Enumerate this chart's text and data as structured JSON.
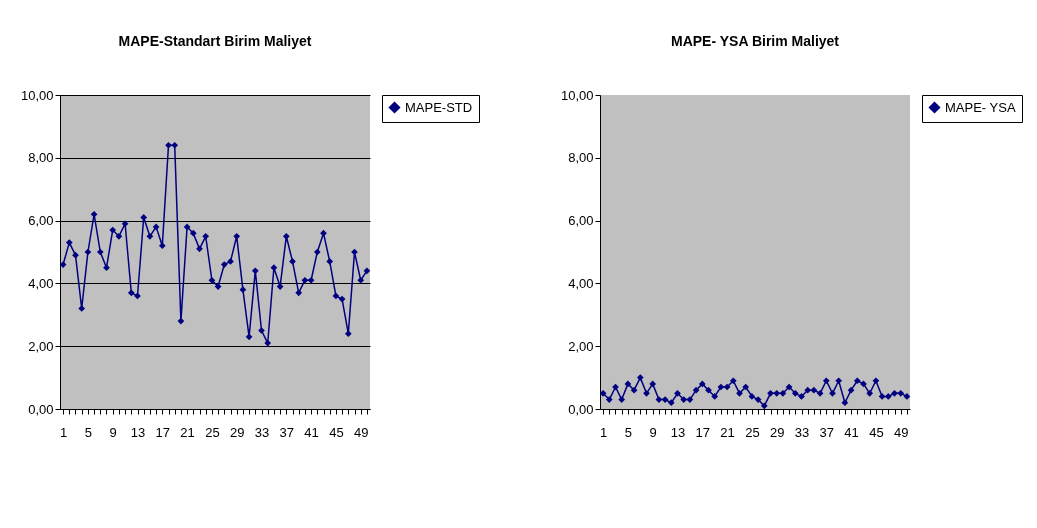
{
  "chart_data": [
    {
      "type": "line",
      "title": "MAPE-Standart Birim Maliyet",
      "categories": [
        "1",
        null,
        null,
        null,
        "5",
        null,
        null,
        null,
        "9",
        null,
        null,
        null,
        "13",
        null,
        null,
        null,
        "17",
        null,
        null,
        null,
        "21",
        null,
        null,
        null,
        "25",
        null,
        null,
        null,
        "29",
        null,
        null,
        null,
        "33",
        null,
        null,
        null,
        "37",
        null,
        null,
        null,
        "41",
        null,
        null,
        null,
        "45",
        null,
        null,
        null,
        "49",
        null
      ],
      "series": [
        {
          "name": "MAPE-STD",
          "color": "#000080",
          "values": [
            4.6,
            5.3,
            4.9,
            3.2,
            5.0,
            6.2,
            5.0,
            4.5,
            5.7,
            5.5,
            5.9,
            3.7,
            3.6,
            6.1,
            5.5,
            5.8,
            5.2,
            8.4,
            8.4,
            2.8,
            5.8,
            5.6,
            5.1,
            5.5,
            4.1,
            3.9,
            4.6,
            4.7,
            5.5,
            3.8,
            2.3,
            4.4,
            2.5,
            2.1,
            4.5,
            3.9,
            5.5,
            4.7,
            3.7,
            4.1,
            4.1,
            5.0,
            5.6,
            4.7,
            3.6,
            3.5,
            2.4,
            5.0,
            4.1,
            4.4
          ]
        }
      ],
      "ylim": [
        0,
        10
      ],
      "yticks": [
        {
          "value": 0,
          "label": "0,00"
        },
        {
          "value": 2,
          "label": "2,00"
        },
        {
          "value": 4,
          "label": "4,00"
        },
        {
          "value": 6,
          "label": "6,00"
        },
        {
          "value": 8,
          "label": "8,00"
        },
        {
          "value": 10,
          "label": "10,00"
        }
      ],
      "grid": "y",
      "legend": "right",
      "marker": "diamond"
    },
    {
      "type": "line",
      "title": "MAPE- YSA Birim Maliyet",
      "categories": [
        "1",
        null,
        null,
        null,
        "5",
        null,
        null,
        null,
        "9",
        null,
        null,
        null,
        "13",
        null,
        null,
        null,
        "17",
        null,
        null,
        null,
        "21",
        null,
        null,
        null,
        "25",
        null,
        null,
        null,
        "29",
        null,
        null,
        null,
        "33",
        null,
        null,
        null,
        "37",
        null,
        null,
        null,
        "41",
        null,
        null,
        null,
        "45",
        null,
        null,
        null,
        "49",
        null
      ],
      "series": [
        {
          "name": "MAPE- YSA",
          "color": "#000080",
          "values": [
            0.5,
            0.3,
            0.7,
            0.3,
            0.8,
            0.6,
            1.0,
            0.5,
            0.8,
            0.3,
            0.3,
            0.2,
            0.5,
            0.3,
            0.3,
            0.6,
            0.8,
            0.6,
            0.4,
            0.7,
            0.7,
            0.9,
            0.5,
            0.7,
            0.4,
            0.3,
            0.1,
            0.5,
            0.5,
            0.5,
            0.7,
            0.5,
            0.4,
            0.6,
            0.6,
            0.5,
            0.9,
            0.5,
            0.9,
            0.2,
            0.6,
            0.9,
            0.8,
            0.5,
            0.9,
            0.4,
            0.4,
            0.5,
            0.5,
            0.4
          ]
        }
      ],
      "ylim": [
        0,
        10
      ],
      "yticks": [
        {
          "value": 0,
          "label": "0,00"
        },
        {
          "value": 2,
          "label": "2,00"
        },
        {
          "value": 4,
          "label": "4,00"
        },
        {
          "value": 6,
          "label": "6,00"
        },
        {
          "value": 8,
          "label": "8,00"
        },
        {
          "value": 10,
          "label": "10,00"
        }
      ],
      "grid": false,
      "legend": "right",
      "marker": "diamond"
    }
  ]
}
